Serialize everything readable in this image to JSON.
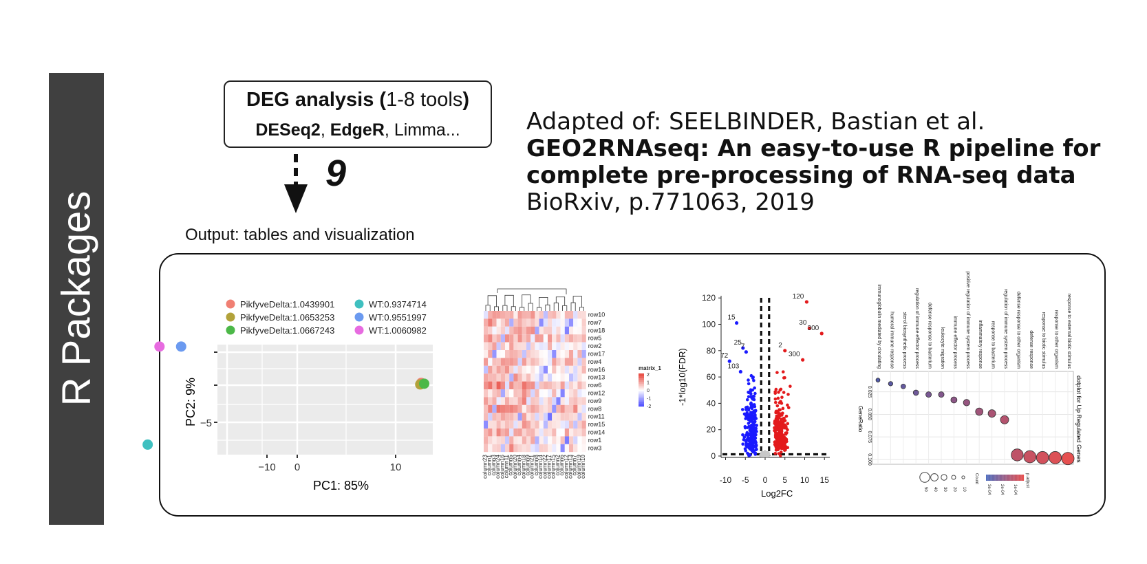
{
  "side_banner": {
    "label": "R Packages"
  },
  "deg_box": {
    "title_bold": "DEG analysis (",
    "title_light": "1-8 tools",
    "title_close": ")",
    "tool1": "DESeq2",
    "sep1": ", ",
    "tool2": "EdgeR",
    "sep2": ", ",
    "tool3": "Limma..."
  },
  "step_number": "9",
  "citation": {
    "line1": "Adapted of: SEELBINDER, Bastian et al.",
    "title_bold_part": "GEO2RNAseq",
    "title_rest_1": ": An easy-to-use R pipeline for",
    "title_line2": "complete pre-processing of RNA-seq data",
    "line4": "BioRxiv, p.771063, 2019"
  },
  "output_label": "Output: tables and visualization",
  "colors": {
    "banner": "#404040",
    "frame": "#111111",
    "up": "#e31a1c",
    "down": "#1a1aff"
  },
  "chart_data": [
    {
      "type": "scatter",
      "xlabel": "PC1: 85%",
      "ylabel": "PC2: 9%",
      "x_ticks": [
        "−10",
        "0",
        "10"
      ],
      "y_ticks": [
        "−5"
      ],
      "series": [
        {
          "name": "PikfyveDelta:1.0439901",
          "color": "#f07f73",
          "x": [
            12.6
          ],
          "y": [
            0.3
          ]
        },
        {
          "name": "PikfyveDelta:1.0653253",
          "color": "#b2a23a",
          "x": [
            12.5
          ],
          "y": [
            0.1
          ]
        },
        {
          "name": "PikfyveDelta:1.0667243",
          "color": "#4cb848",
          "x": [
            12.9
          ],
          "y": [
            0.2
          ]
        },
        {
          "name": "WT:0.9374714",
          "color": "#3fc0c0",
          "x": [
            -15.2
          ],
          "y": [
            -8.0
          ]
        },
        {
          "name": "WT:0.9551997",
          "color": "#6b9af0",
          "x": [
            -11.8
          ],
          "y": [
            5.2
          ]
        },
        {
          "name": "WT:1.0060982",
          "color": "#e76be0",
          "x": [
            -14.0
          ],
          "y": [
            5.2
          ]
        }
      ]
    },
    {
      "type": "heatmap",
      "legend_title": "matrix_1",
      "legend_ticks": [
        "2",
        "1",
        "0",
        "-1",
        "-2"
      ],
      "rows": [
        "row10",
        "row7",
        "row18",
        "row5",
        "row2",
        "row17",
        "row4",
        "row16",
        "row13",
        "row6",
        "row12",
        "row9",
        "row8",
        "row11",
        "row15",
        "row14",
        "row1",
        "row3"
      ],
      "columns": [
        "column23",
        "column1",
        "column3",
        "column24",
        "column16",
        "column11",
        "column5",
        "column20",
        "column4",
        "column18",
        "column9",
        "column21",
        "column8",
        "column14",
        "column22",
        "column17",
        "column15",
        "column2",
        "column6",
        "column12",
        "column13",
        "column7",
        "column19",
        "column10"
      ]
    },
    {
      "type": "scatter",
      "subtype": "volcano",
      "xlabel": "Log2FC",
      "ylabel": "-1*log10(FDR)",
      "x_ticks": [
        "-10",
        "-5",
        "0",
        "5",
        "10",
        "15"
      ],
      "y_ticks": [
        "0",
        "20",
        "40",
        "60",
        "80",
        "100",
        "120"
      ],
      "xlim": [
        -12,
        16
      ],
      "ylim": [
        0,
        125
      ],
      "annotations": [
        {
          "text": "120",
          "x": 10.5,
          "y": 117,
          "side": "up"
        },
        {
          "text": "30",
          "x": 11.2,
          "y": 97,
          "side": "up"
        },
        {
          "text": "300",
          "x": 14.3,
          "y": 93,
          "side": "up"
        },
        {
          "text": "2",
          "x": 5.0,
          "y": 80,
          "side": "up"
        },
        {
          "text": "300",
          "x": 9.5,
          "y": 73,
          "side": "up"
        },
        {
          "text": "15",
          "x": -7.2,
          "y": 101,
          "side": "down"
        },
        {
          "text": "25",
          "x": -5.6,
          "y": 82,
          "side": "down"
        },
        {
          "text": "7",
          "x": -4.8,
          "y": 79,
          "side": "down"
        },
        {
          "text": "72",
          "x": -9.0,
          "y": 72,
          "side": "down"
        },
        {
          "text": "103",
          "x": -6.2,
          "y": 64,
          "side": "down"
        }
      ]
    },
    {
      "type": "scatter",
      "subtype": "dotplot",
      "title": "dotplot for Up Regulated Genes",
      "xlabel": "GeneRatio",
      "x_ticks": [
        "0.025",
        "0.050",
        "0.075",
        "0.100"
      ],
      "terms": [
        "immunoglobulin mediated by circulating",
        "humoral immune response",
        "sterol biosynthetic process",
        "regulation of immune effector process",
        "defense response to bacterium",
        "leukocyte migration",
        "immune effector process",
        "positive regulation of immune system process",
        "inflammatory response",
        "response to bacterium",
        "regulation of immune system process",
        "defense response to other organism",
        "defense response",
        "response to biotic stimulus",
        "response to other organism",
        "response to external biotic stimulus"
      ],
      "gene_ratio": [
        0.012,
        0.016,
        0.019,
        0.026,
        0.028,
        0.028,
        0.034,
        0.037,
        0.047,
        0.049,
        0.056,
        0.095,
        0.097,
        0.098,
        0.098,
        0.099
      ],
      "legend_count_title": "Count",
      "legend_count_ticks": [
        "50",
        "40",
        "30",
        "20",
        "10"
      ],
      "legend_padj_title": "p.adjust",
      "legend_padj_ticks": [
        "3e-04",
        "2e-04",
        "1e-04"
      ]
    }
  ]
}
